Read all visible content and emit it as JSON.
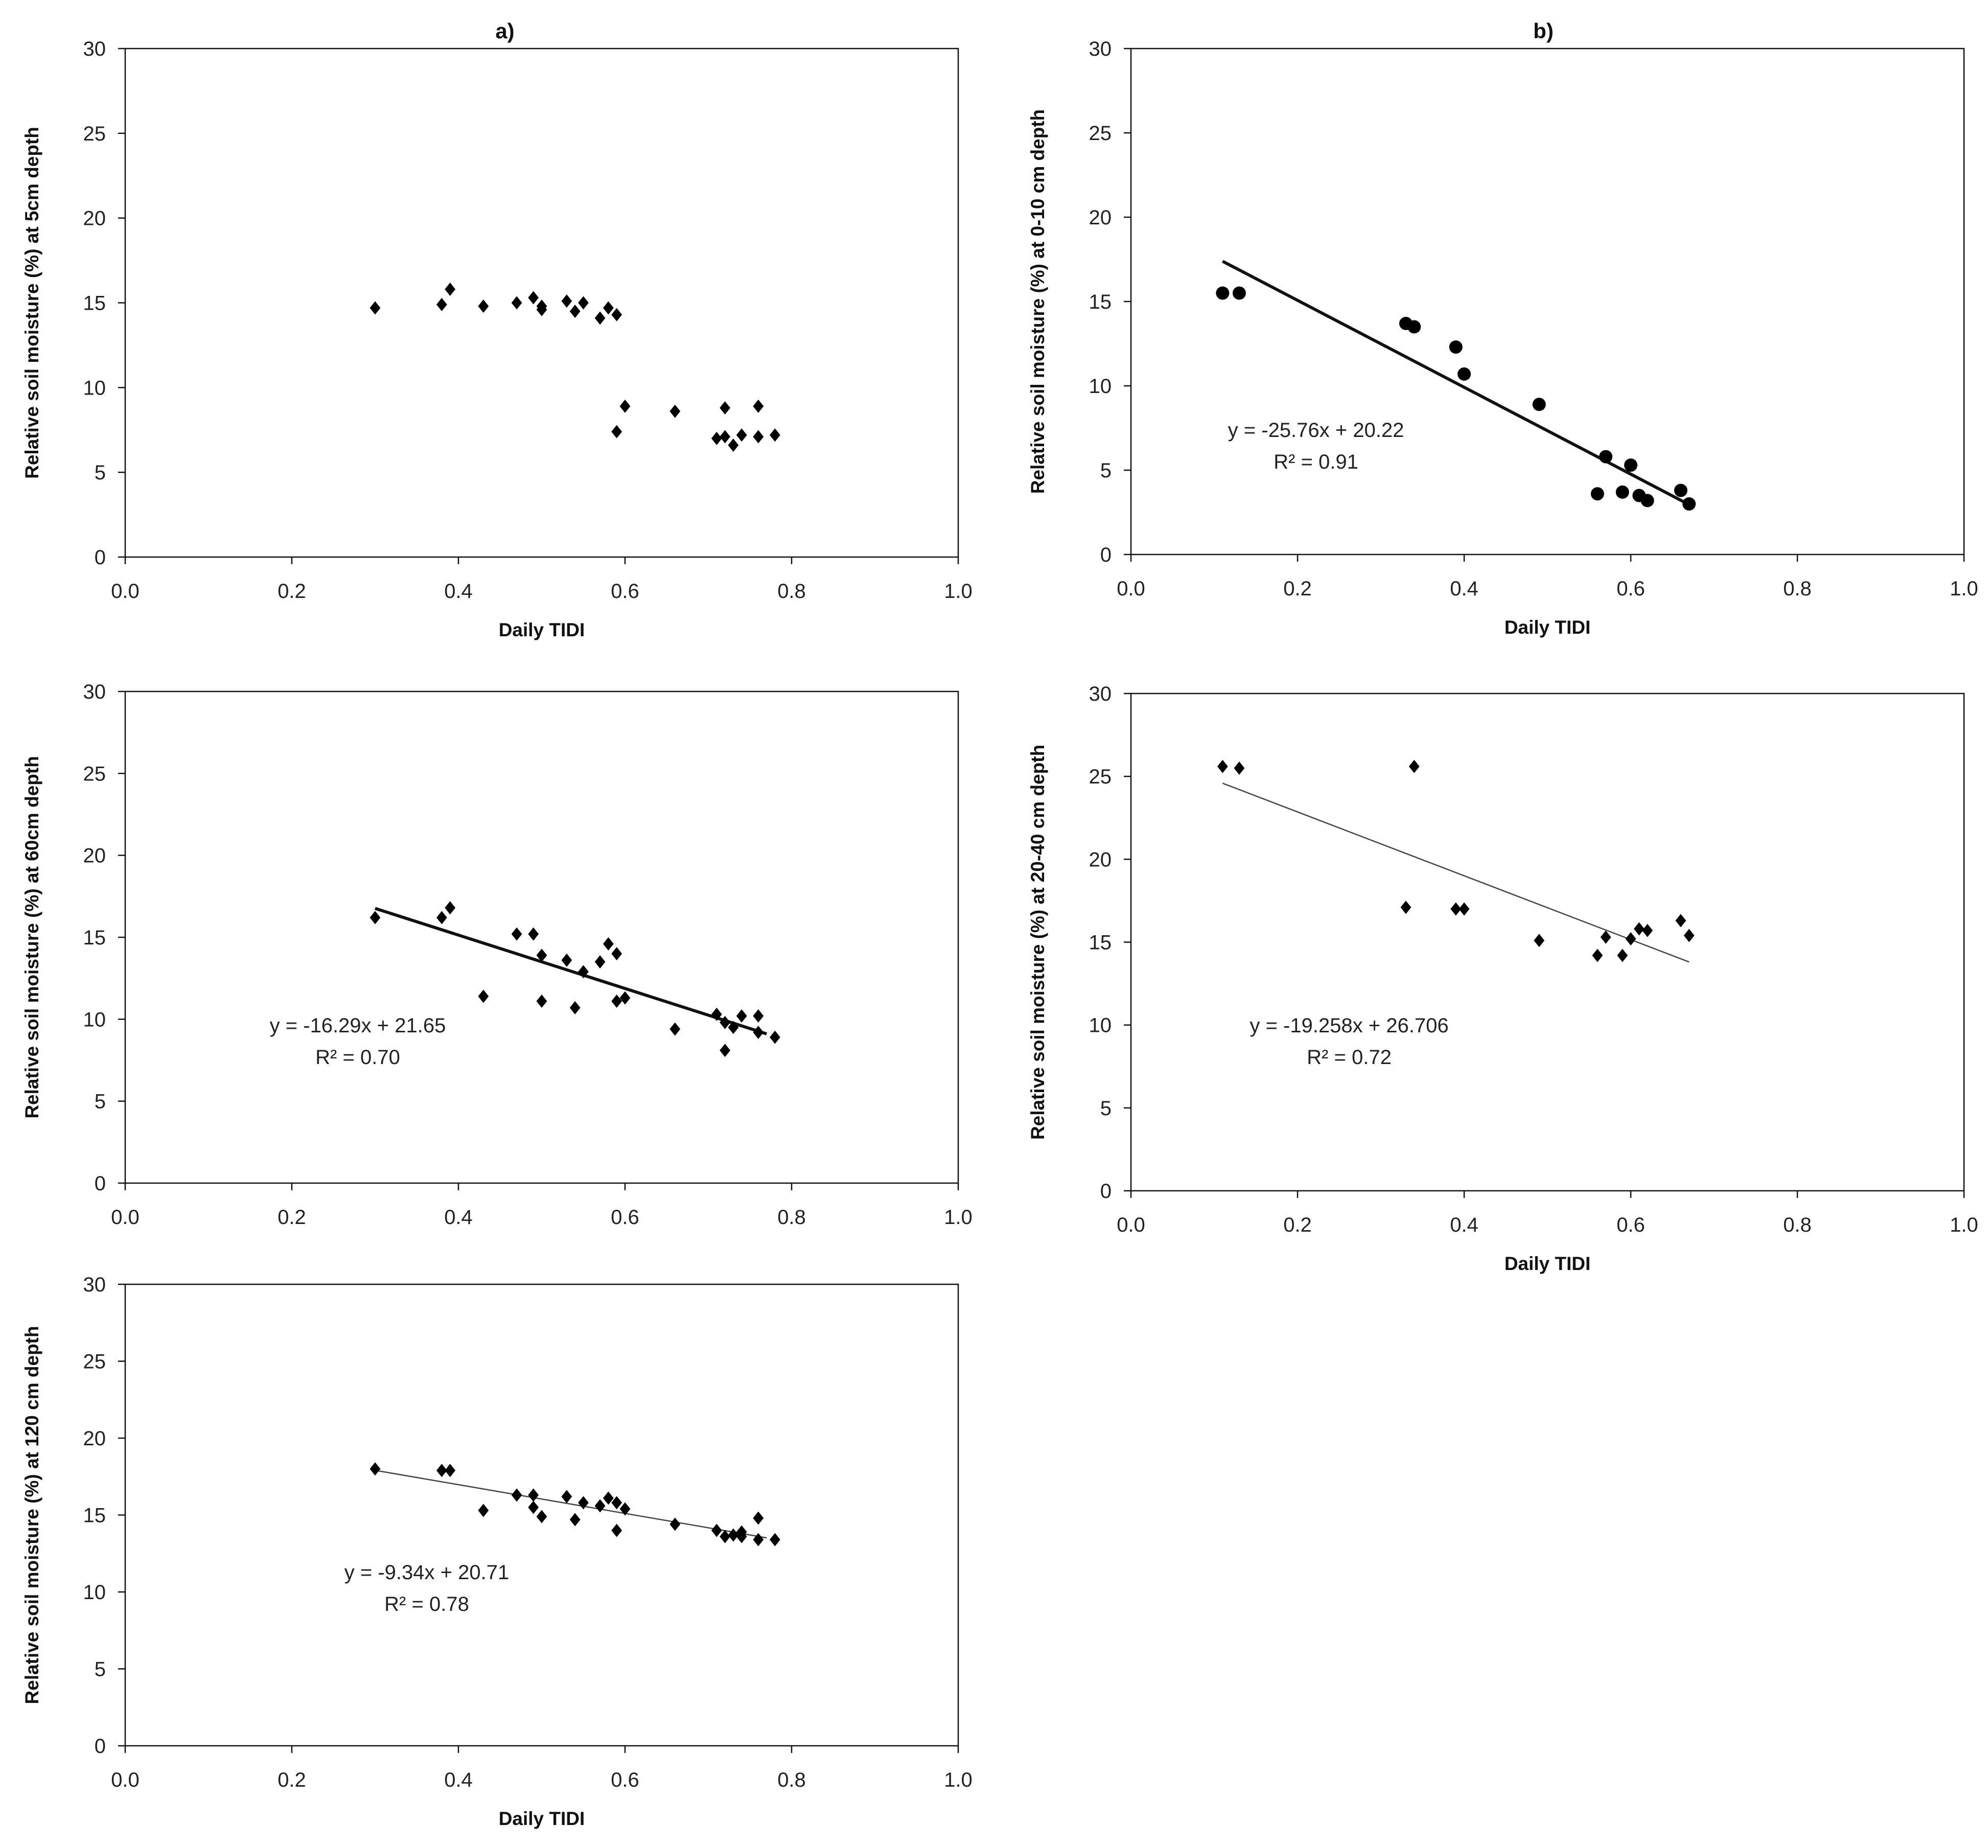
{
  "figure": {
    "panel_labels": [
      "a)",
      "b)"
    ]
  },
  "chart_data": [
    {
      "id": "a1",
      "type": "scatter",
      "marker": "diamond",
      "panel_label": "a)",
      "xlabel": "Daily TIDI",
      "ylabel": "Relative soil moisture (%) at 5cm  depth",
      "xlim": [
        0,
        1.0
      ],
      "ylim": [
        0,
        30
      ],
      "xticks": [
        "0.0",
        "0.2",
        "0.4",
        "0.6",
        "0.8",
        "1.0"
      ],
      "yticks": [
        "0",
        "5",
        "10",
        "15",
        "20",
        "25",
        "30"
      ],
      "points": [
        [
          0.3,
          14.7
        ],
        [
          0.38,
          14.9
        ],
        [
          0.39,
          15.8
        ],
        [
          0.43,
          14.8
        ],
        [
          0.47,
          15.0
        ],
        [
          0.49,
          15.3
        ],
        [
          0.5,
          14.8
        ],
        [
          0.5,
          14.6
        ],
        [
          0.53,
          15.1
        ],
        [
          0.54,
          14.5
        ],
        [
          0.55,
          15.0
        ],
        [
          0.57,
          14.1
        ],
        [
          0.58,
          14.7
        ],
        [
          0.59,
          14.3
        ],
        [
          0.59,
          7.4
        ],
        [
          0.6,
          8.9
        ],
        [
          0.66,
          8.6
        ],
        [
          0.71,
          7.0
        ],
        [
          0.72,
          8.8
        ],
        [
          0.72,
          7.1
        ],
        [
          0.73,
          6.6
        ],
        [
          0.74,
          7.2
        ],
        [
          0.76,
          7.1
        ],
        [
          0.76,
          8.9
        ],
        [
          0.78,
          7.2
        ]
      ],
      "trendline": null
    },
    {
      "id": "a2",
      "type": "scatter",
      "marker": "diamond",
      "xlabel": "",
      "ylabel": "Relative soil moisture (%) at 60cm  depth",
      "xlim": [
        0,
        1.0
      ],
      "ylim": [
        0,
        30
      ],
      "xticks": [
        "0.0",
        "0.2",
        "0.4",
        "0.6",
        "0.8",
        "1.0"
      ],
      "yticks": [
        "0",
        "5",
        "10",
        "15",
        "20",
        "25",
        "30"
      ],
      "points": [
        [
          0.3,
          16.2
        ],
        [
          0.38,
          16.2
        ],
        [
          0.39,
          16.8
        ],
        [
          0.43,
          11.4
        ],
        [
          0.47,
          15.2
        ],
        [
          0.49,
          15.2
        ],
        [
          0.5,
          13.9
        ],
        [
          0.5,
          11.1
        ],
        [
          0.53,
          13.6
        ],
        [
          0.54,
          10.7
        ],
        [
          0.55,
          12.9
        ],
        [
          0.57,
          13.5
        ],
        [
          0.58,
          14.6
        ],
        [
          0.59,
          14.0
        ],
        [
          0.59,
          11.1
        ],
        [
          0.6,
          11.3
        ],
        [
          0.66,
          9.4
        ],
        [
          0.71,
          10.3
        ],
        [
          0.72,
          9.8
        ],
        [
          0.72,
          8.1
        ],
        [
          0.73,
          9.5
        ],
        [
          0.74,
          10.2
        ],
        [
          0.76,
          9.2
        ],
        [
          0.76,
          10.2
        ],
        [
          0.78,
          8.9
        ]
      ],
      "trendline": {
        "equation": "y = -16.29x + 21.65",
        "r2": "R² = 0.70",
        "slope": -16.29,
        "intercept": 21.65,
        "x_range": [
          0.3,
          0.77
        ],
        "weight": "bold"
      }
    },
    {
      "id": "a3",
      "type": "scatter",
      "marker": "diamond",
      "xlabel": "Daily TIDI",
      "ylabel": "Relative soil moisture (%) at 120  cm depth",
      "xlim": [
        0,
        1.0
      ],
      "ylim": [
        0,
        30
      ],
      "xticks": [
        "0.0",
        "0.2",
        "0.4",
        "0.6",
        "0.8",
        "1.0"
      ],
      "yticks": [
        "0",
        "5",
        "10",
        "15",
        "20",
        "25",
        "30"
      ],
      "points": [
        [
          0.3,
          18.0
        ],
        [
          0.38,
          17.9
        ],
        [
          0.39,
          17.9
        ],
        [
          0.43,
          15.3
        ],
        [
          0.47,
          16.3
        ],
        [
          0.49,
          16.3
        ],
        [
          0.49,
          15.5
        ],
        [
          0.5,
          14.9
        ],
        [
          0.53,
          16.2
        ],
        [
          0.54,
          14.7
        ],
        [
          0.55,
          15.8
        ],
        [
          0.57,
          15.6
        ],
        [
          0.58,
          16.1
        ],
        [
          0.59,
          15.8
        ],
        [
          0.59,
          14.0
        ],
        [
          0.6,
          15.4
        ],
        [
          0.66,
          14.4
        ],
        [
          0.71,
          14.0
        ],
        [
          0.72,
          13.6
        ],
        [
          0.73,
          13.7
        ],
        [
          0.74,
          13.9
        ],
        [
          0.74,
          13.6
        ],
        [
          0.76,
          14.8
        ],
        [
          0.76,
          13.4
        ],
        [
          0.78,
          13.4
        ]
      ],
      "trendline": {
        "equation": "y = -9.34x + 20.71",
        "r2": "R² = 0.78",
        "slope": -9.34,
        "intercept": 20.71,
        "x_range": [
          0.3,
          0.77
        ],
        "weight": "thin"
      }
    },
    {
      "id": "b1",
      "type": "scatter",
      "marker": "circle",
      "panel_label": "b)",
      "xlabel": "Daily TIDI",
      "ylabel": "Relative soil moisture (%) at 0-10 cm depth",
      "xlim": [
        0,
        1.0
      ],
      "ylim": [
        0,
        30
      ],
      "xticks": [
        "0.0",
        "0.2",
        "0.4",
        "0.6",
        "0.8",
        "1.0"
      ],
      "yticks": [
        "0",
        "5",
        "10",
        "15",
        "20",
        "25",
        "30"
      ],
      "points": [
        [
          0.11,
          15.5
        ],
        [
          0.13,
          15.5
        ],
        [
          0.33,
          13.7
        ],
        [
          0.34,
          13.5
        ],
        [
          0.39,
          12.3
        ],
        [
          0.4,
          10.7
        ],
        [
          0.49,
          8.9
        ],
        [
          0.56,
          3.6
        ],
        [
          0.57,
          5.8
        ],
        [
          0.59,
          3.7
        ],
        [
          0.6,
          5.3
        ],
        [
          0.61,
          3.5
        ],
        [
          0.62,
          3.2
        ],
        [
          0.66,
          3.8
        ],
        [
          0.67,
          3.0
        ]
      ],
      "trendline": {
        "equation": "y = -25.76x + 20.22",
        "r2": "R² = 0.91",
        "slope": -25.76,
        "intercept": 20.22,
        "x_range": [
          0.11,
          0.67
        ],
        "weight": "bold"
      }
    },
    {
      "id": "b2",
      "type": "scatter",
      "marker": "diamond",
      "xlabel": "Daily TIDI",
      "ylabel": "Relative soil moisture (%) at 20-40  cm depth",
      "xlim": [
        0,
        1.0
      ],
      "ylim": [
        0,
        30
      ],
      "xticks": [
        "0.0",
        "0.2",
        "0.4",
        "0.6",
        "0.8",
        "1.0"
      ],
      "yticks": [
        "0",
        "5",
        "10",
        "15",
        "20",
        "25",
        "30"
      ],
      "points": [
        [
          0.11,
          25.6
        ],
        [
          0.13,
          25.5
        ],
        [
          0.33,
          17.1
        ],
        [
          0.34,
          25.6
        ],
        [
          0.39,
          17.0
        ],
        [
          0.4,
          17.0
        ],
        [
          0.49,
          15.1
        ],
        [
          0.56,
          14.2
        ],
        [
          0.57,
          15.3
        ],
        [
          0.59,
          14.2
        ],
        [
          0.6,
          15.2
        ],
        [
          0.61,
          15.8
        ],
        [
          0.62,
          15.7
        ],
        [
          0.66,
          16.3
        ],
        [
          0.67,
          15.4
        ]
      ],
      "trendline": {
        "equation": "y = -19.258x + 26.706",
        "r2": "R² = 0.72",
        "slope": -19.258,
        "intercept": 26.706,
        "x_range": [
          0.11,
          0.67
        ],
        "weight": "thin"
      }
    }
  ]
}
